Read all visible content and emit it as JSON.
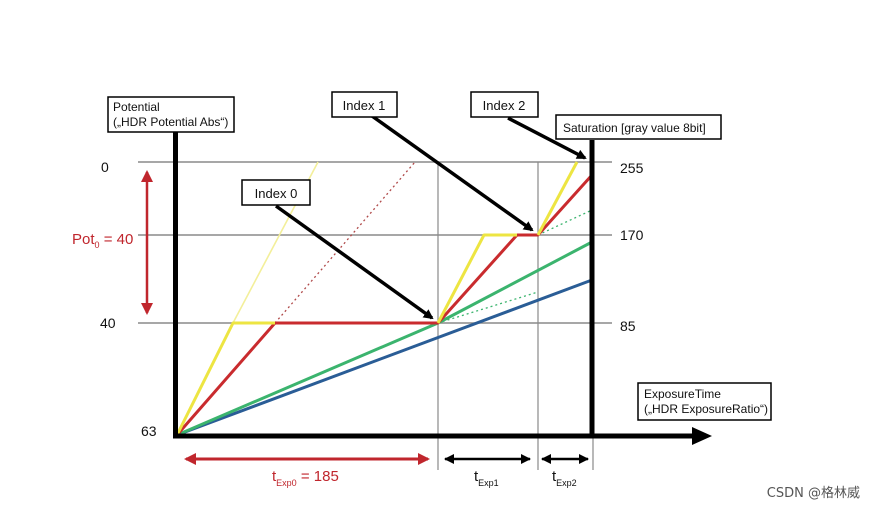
{
  "potential_box": {
    "line1": "Potential",
    "line2": "(„HDR Potential Abs“)"
  },
  "saturation_box": {
    "label": "Saturation [gray value 8bit]"
  },
  "exposure_box": {
    "line1": "ExposureTime",
    "line2": "(„HDR ExposureRatio“)"
  },
  "index_labels": [
    "Index 0",
    "Index 1",
    "Index 2"
  ],
  "left_ticks": [
    "0",
    "40",
    "63"
  ],
  "right_ticks": [
    "255",
    "170",
    "85"
  ],
  "pot0": {
    "main": "Pot",
    "sub": "0",
    "rest": " = 40"
  },
  "texp0": {
    "main": "t",
    "sub": "Exp0",
    "rest": " = 185"
  },
  "texp1": {
    "main": "t",
    "sub": "Exp1"
  },
  "texp2": {
    "main": "t",
    "sub": "Exp2"
  },
  "watermark": "CSDN @格林威",
  "colors": {
    "yellow": "#ede542",
    "red": "#c92b2e",
    "green": "#3bb46e",
    "blue": "#2a5d96",
    "axis": "#000000",
    "grid": "#8a8a8a",
    "annotation_red": "#c0262d"
  }
}
